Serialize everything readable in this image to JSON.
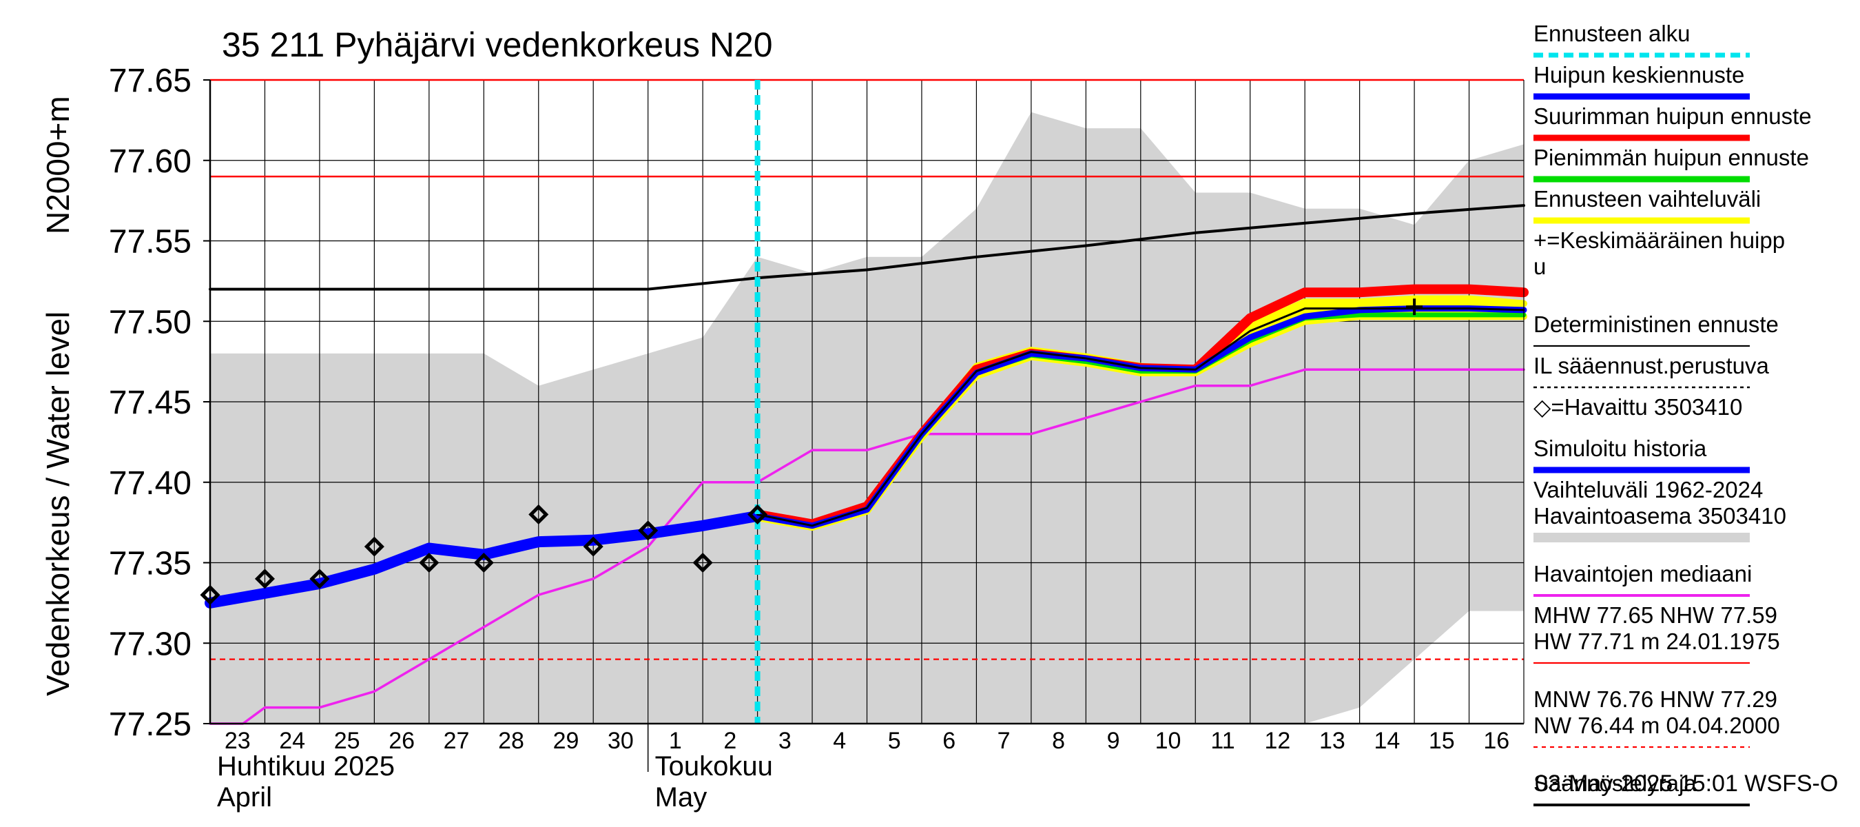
{
  "chart_data": {
    "type": "line",
    "title": "35 211 Pyhäjärvi vedenkorkeus N20",
    "ylabel_1": "Vedenkorkeus / Water level",
    "ylabel_2": "N2000+m",
    "ylim": [
      77.25,
      77.65
    ],
    "yticks": [
      77.25,
      77.3,
      77.35,
      77.4,
      77.45,
      77.5,
      77.55,
      77.6,
      77.65
    ],
    "ytick_labels": [
      "77.25",
      "77.30",
      "77.35",
      "77.40",
      "77.45",
      "77.50",
      "77.55",
      "77.60",
      "77.65"
    ],
    "x_range_days": [
      0,
      24
    ],
    "x_day_labels": [
      "23",
      "24",
      "25",
      "26",
      "27",
      "28",
      "29",
      "30",
      "1",
      "2",
      "3",
      "4",
      "5",
      "6",
      "7",
      "8",
      "9",
      "10",
      "11",
      "12",
      "13",
      "14",
      "15",
      "16"
    ],
    "month_labels": [
      {
        "fi": "Huhtikuu  2025",
        "en": "April",
        "start_day": 0
      },
      {
        "fi": "Toukokuu",
        "en": "May",
        "start_day": 8
      }
    ],
    "forecast_start_day": 10.0,
    "reference_lines": {
      "MHW": 77.65,
      "NHW": 77.59,
      "regulation_limit": 77.29
    },
    "range_band": {
      "name": "Vaihteluväli 1962-2024 Havaintoasema 3503410",
      "x": [
        0,
        4,
        5,
        6,
        7,
        8,
        9,
        10,
        11,
        12,
        13,
        14,
        15,
        16,
        17,
        18,
        19,
        20,
        21,
        22,
        23,
        24
      ],
      "upper": [
        77.48,
        77.48,
        77.48,
        77.46,
        77.47,
        77.48,
        77.49,
        77.54,
        77.53,
        77.54,
        77.54,
        77.57,
        77.63,
        77.62,
        77.62,
        77.58,
        77.58,
        77.57,
        77.57,
        77.56,
        77.6,
        77.61
      ],
      "lower": [
        77.25,
        77.25,
        77.25,
        77.25,
        77.25,
        77.25,
        77.25,
        77.25,
        77.25,
        77.25,
        77.25,
        77.25,
        77.25,
        77.25,
        77.25,
        77.25,
        77.25,
        77.25,
        77.25,
        77.25,
        77.25,
        77.25
      ],
      "lower_tail": {
        "x": [
          20,
          21,
          22,
          23,
          24
        ],
        "y": [
          77.25,
          77.26,
          77.29,
          77.32,
          77.32
        ]
      }
    },
    "series": [
      {
        "name": "Keskimääräinen huippu",
        "role": "mean_peak_line",
        "color": "#000000",
        "x": [
          0,
          8,
          10,
          12,
          14,
          16,
          18,
          20,
          22,
          24
        ],
        "y": [
          77.52,
          77.52,
          77.527,
          77.532,
          77.54,
          77.547,
          77.555,
          77.561,
          77.567,
          77.572
        ]
      },
      {
        "name": "Havaintojen mediaani",
        "role": "median",
        "color": "#ee22ee",
        "x": [
          0,
          0.6,
          1,
          2,
          3,
          4,
          5,
          6,
          7,
          8,
          9,
          10,
          11,
          12,
          13,
          14,
          15,
          16,
          17,
          18,
          19,
          20,
          21,
          22,
          23,
          24
        ],
        "y": [
          77.25,
          77.25,
          77.26,
          77.26,
          77.27,
          77.29,
          77.31,
          77.33,
          77.34,
          77.36,
          77.4,
          77.4,
          77.42,
          77.42,
          77.43,
          77.43,
          77.43,
          77.44,
          77.45,
          77.46,
          77.46,
          77.47,
          77.47,
          77.47,
          77.47,
          77.47
        ]
      },
      {
        "name": "Simuloitu historia",
        "role": "simulated",
        "color": "#0000ff",
        "x": [
          0,
          1,
          2,
          3,
          4,
          5,
          6,
          7,
          8,
          9,
          10
        ],
        "y": [
          77.325,
          77.331,
          77.337,
          77.346,
          77.359,
          77.355,
          77.363,
          77.364,
          77.368,
          77.373,
          77.379
        ]
      },
      {
        "name": "Suurimman huipun ennuste",
        "role": "max_forecast",
        "color": "#ff0000",
        "x": [
          10,
          11,
          12,
          13,
          14,
          15,
          16,
          17,
          18,
          19,
          20,
          21,
          22,
          23,
          24
        ],
        "y": [
          77.38,
          77.374,
          77.385,
          77.43,
          77.47,
          77.48,
          77.476,
          77.471,
          77.47,
          77.502,
          77.518,
          77.518,
          77.52,
          77.52,
          77.518
        ]
      },
      {
        "name": "Ennusteen vaihteluväli",
        "role": "range_upper",
        "color": "#ffff00",
        "x": [
          10,
          11,
          12,
          13,
          14,
          15,
          16,
          17,
          18,
          19,
          20,
          21,
          22,
          23,
          24
        ],
        "y": [
          77.38,
          77.374,
          77.385,
          77.43,
          77.472,
          77.482,
          77.478,
          77.472,
          77.47,
          77.497,
          77.512,
          77.512,
          77.514,
          77.514,
          77.511
        ]
      },
      {
        "name": "Ennusteen vaihteluväli",
        "role": "range_lower",
        "color": "#ffff00",
        "x": [
          10,
          11,
          12,
          13,
          14,
          15,
          16,
          17,
          18,
          19,
          20,
          21,
          22,
          23,
          24
        ],
        "y": [
          77.378,
          77.372,
          77.382,
          77.428,
          77.466,
          77.478,
          77.474,
          77.468,
          77.468,
          77.486,
          77.5,
          77.503,
          77.503,
          77.503,
          77.503
        ]
      },
      {
        "name": "Pienimmän huipun ennuste",
        "role": "min_forecast",
        "color": "#00dd00",
        "x": [
          10,
          11,
          12,
          13,
          14,
          15,
          16,
          17,
          18,
          19,
          20,
          21,
          22,
          23,
          24
        ],
        "y": [
          77.379,
          77.373,
          77.383,
          77.429,
          77.468,
          77.479,
          77.475,
          77.469,
          77.469,
          77.488,
          77.502,
          77.504,
          77.504,
          77.504,
          77.504
        ]
      },
      {
        "name": "Huipun keskiennuste",
        "role": "mean_forecast",
        "color": "#0000ff",
        "x": [
          10,
          11,
          12,
          13,
          14,
          15,
          16,
          17,
          18,
          19,
          20,
          21,
          22,
          23,
          24
        ],
        "y": [
          77.379,
          77.373,
          77.383,
          77.43,
          77.468,
          77.48,
          77.477,
          77.471,
          77.47,
          77.49,
          77.503,
          77.507,
          77.508,
          77.508,
          77.507
        ]
      },
      {
        "name": "Deterministinen ennuste",
        "role": "deterministic",
        "color": "#000000",
        "x": [
          10,
          11,
          12,
          13,
          14,
          15,
          16,
          17,
          18,
          19,
          20,
          21,
          22,
          23,
          24
        ],
        "y": [
          77.38,
          77.373,
          77.384,
          77.43,
          77.469,
          77.481,
          77.477,
          77.471,
          77.47,
          77.494,
          77.508,
          77.508,
          77.508,
          77.508,
          77.507
        ]
      }
    ],
    "observations": {
      "name": "Havaittu 3503410",
      "x": [
        0,
        1,
        2,
        3,
        4,
        5,
        6,
        7,
        8,
        9,
        10
      ],
      "y": [
        77.33,
        77.34,
        77.34,
        77.36,
        77.35,
        77.35,
        77.38,
        77.36,
        77.37,
        77.35,
        77.38
      ]
    },
    "mean_peak_marker": {
      "x": 22.0,
      "y": 77.509
    },
    "legend": [
      {
        "label": "Ennusteen alku",
        "style": "dashed",
        "color": "#00e5ee"
      },
      {
        "label": "Huipun keskiennuste",
        "style": "thick",
        "color": "#0000ff"
      },
      {
        "label": "Suurimman huipun ennuste",
        "style": "thick",
        "color": "#ff0000"
      },
      {
        "label": "Pienimmän huipun ennuste",
        "style": "thick",
        "color": "#00dd00"
      },
      {
        "label": "Ennusteen vaihteluväli",
        "style": "thick",
        "color": "#ffff00"
      },
      {
        "label": "+=Keskimääräinen huipp",
        "label2": "u",
        "style": "none",
        "color": "#000000"
      },
      {
        "label": "Deterministinen ennuste",
        "style": "thin",
        "color": "#000000"
      },
      {
        "label": "IL sääennust.perustuva",
        "style": "dotted",
        "color": "#000000"
      },
      {
        "label": "◇=Havaittu 3503410",
        "style": "none",
        "color": "#000000"
      },
      {
        "label": "Simuloitu historia",
        "style": "thick",
        "color": "#0000ff"
      },
      {
        "label": "Vaihteluväli 1962-2024",
        "label2": " Havaintoasema 3503410",
        "style": "band",
        "color": "#d3d3d3"
      },
      {
        "label": "Havaintojen mediaani",
        "style": "medium",
        "color": "#ee22ee"
      },
      {
        "label": "MHW  77.65 NHW  77.59",
        "label2": "HW  77.71 m 24.01.1975",
        "style": "thin",
        "color": "#ff0000"
      },
      {
        "label": "MNW  76.76 HNW  77.29",
        "label2": "NW  76.44 m 04.04.2000",
        "style": "dashed-thin",
        "color": "#ff0000"
      },
      {
        "label": "Säännöstelyraja",
        "style": "medium",
        "color": "#000000"
      }
    ],
    "footer": "03-May-2025 15:01 WSFS-O"
  },
  "colors": {
    "band": "#d3d3d3",
    "grid": "#000000",
    "reference": "#ff0000",
    "forecast_start": "#00e5ee"
  }
}
